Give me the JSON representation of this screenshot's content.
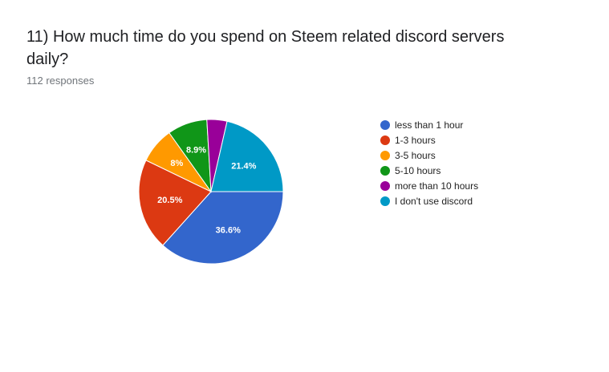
{
  "question": {
    "title": "11) How much time do you spend on Steem related discord servers daily?",
    "responses": "112 responses"
  },
  "chart_data": {
    "type": "pie",
    "categories": [
      "less than 1 hour",
      "1-3 hours",
      "3-5 hours",
      "5-10 hours",
      "more than 10 hours",
      "I don't use discord"
    ],
    "values": [
      36.6,
      20.5,
      8,
      8.9,
      4.5,
      21.4
    ],
    "labels": [
      "36.6%",
      "20.5%",
      "8%",
      "8.9%",
      "",
      "21.4%"
    ],
    "colors": [
      "#3366cc",
      "#dc3912",
      "#ff9900",
      "#109618",
      "#990099",
      "#0099c6"
    ],
    "legend_position": "right"
  }
}
